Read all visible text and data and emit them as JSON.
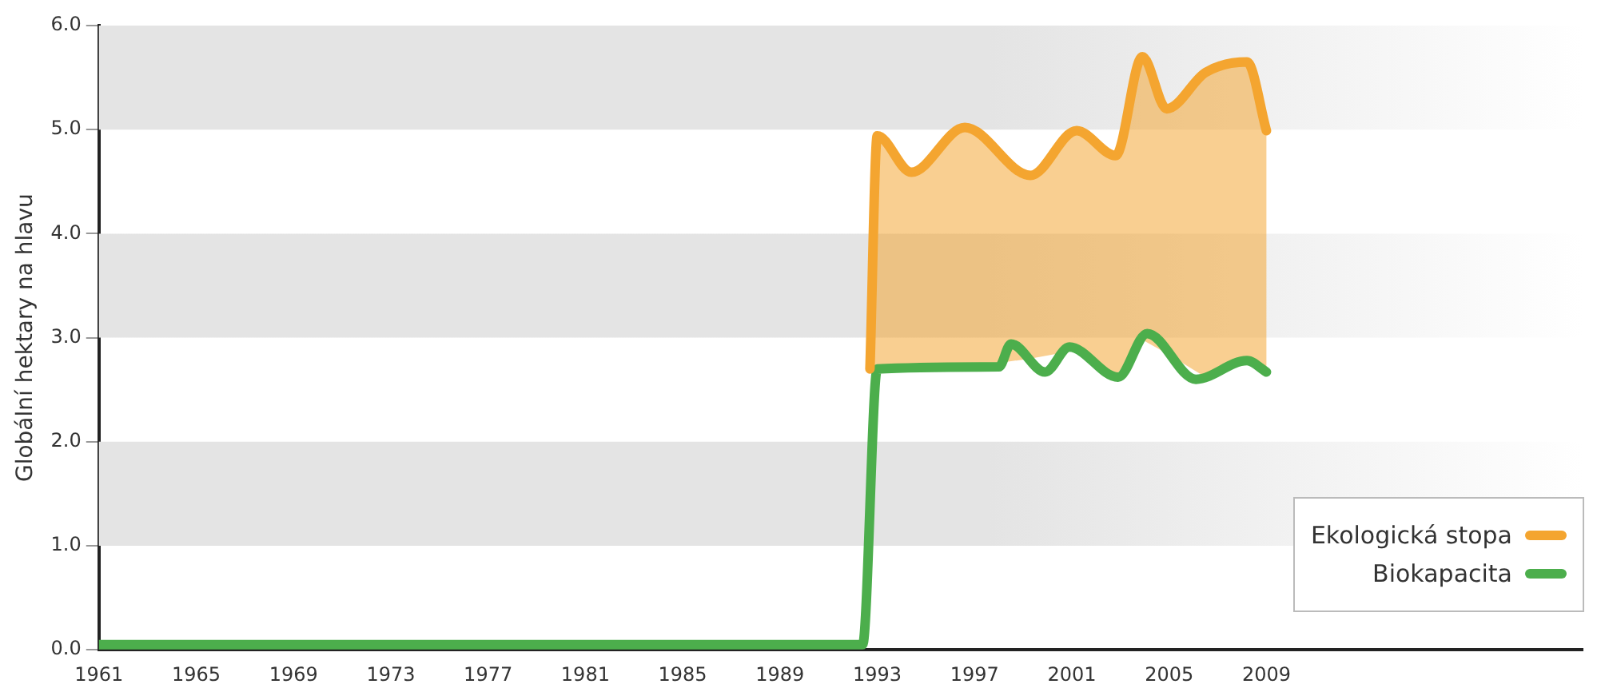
{
  "chart_data": {
    "type": "line",
    "ylabel": "Globální hektary na hlavu",
    "xlim": [
      1961,
      2022
    ],
    "xticks": [
      1961,
      1965,
      1969,
      1973,
      1977,
      1981,
      1985,
      1989,
      1993,
      1997,
      2001,
      2005,
      2009
    ],
    "ylim": [
      0,
      6
    ],
    "yticks": [
      {
        "value": 0,
        "label": "0.0"
      },
      {
        "value": 1,
        "label": "1.0"
      },
      {
        "value": 2,
        "label": "2.0"
      },
      {
        "value": 3,
        "label": "3.0"
      },
      {
        "value": 4,
        "label": "4.0"
      },
      {
        "value": 5,
        "label": "5.0"
      },
      {
        "value": 6,
        "label": "6.0"
      }
    ],
    "grid": false,
    "legend": "bottom right",
    "marker": "none",
    "line_style": "solid",
    "bands": [
      {
        "axis": "y",
        "from": 1,
        "to": 2,
        "color": "#e4e4e4"
      },
      {
        "axis": "y",
        "from": 3,
        "to": 4,
        "color": "#e4e4e4"
      },
      {
        "axis": "y",
        "from": 5,
        "to": 6,
        "color": "#e4e4e4"
      }
    ],
    "series": [
      {
        "name": "Ekologická stopa",
        "color": "#f4a530",
        "x": [
          1992.7,
          1993,
          1994.4,
          1996.6,
          1999.3,
          2001.2,
          2002.8,
          2003.9,
          2004.9,
          2006.5,
          2008.2,
          2009
        ],
        "values": [
          2.7,
          4.94,
          4.59,
          5.02,
          4.56,
          4.99,
          4.75,
          5.7,
          5.2,
          5.55,
          5.65,
          4.99
        ],
        "lower": [
          2.7,
          2.7,
          2.71,
          2.71,
          2.8,
          2.88,
          2.63,
          2.98,
          2.85,
          2.62,
          2.78,
          2.67
        ],
        "upper": [
          2.7,
          4.94,
          4.59,
          5.02,
          4.56,
          4.99,
          4.75,
          5.7,
          5.2,
          5.55,
          5.65,
          4.99
        ]
      },
      {
        "name": "Biokapacita",
        "color": "#4cae4c",
        "x": [
          1961,
          1992.4,
          1993,
          1998,
          1998.5,
          1999.9,
          2000.9,
          2002.9,
          2004.1,
          2006.1,
          2008.2,
          2009
        ],
        "values": [
          0.05,
          0.05,
          2.7,
          2.72,
          2.94,
          2.67,
          2.91,
          2.62,
          3.04,
          2.6,
          2.78,
          2.67
        ]
      }
    ]
  }
}
